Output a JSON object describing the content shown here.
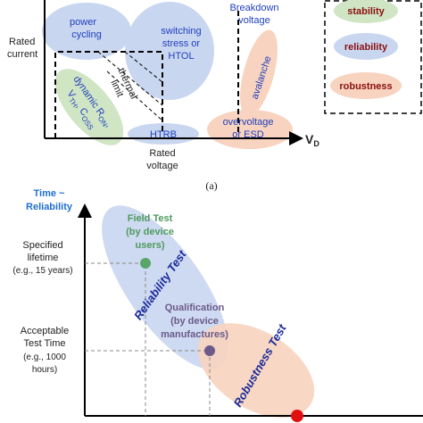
{
  "top_panel": {
    "rated_current": [
      "Rated",
      "current"
    ],
    "power_cycling": [
      "power",
      "cycling"
    ],
    "switching": [
      "switching",
      "stress or",
      "HTOL"
    ],
    "breakdown": [
      "Breakdown",
      "voltage"
    ],
    "thermal_limit": [
      "thermal",
      "limit"
    ],
    "avalanche": "avalanche",
    "dynamic": {
      "line1": [
        "dynamic R",
        "ON",
        ","
      ],
      "line2": [
        "V",
        "TH",
        ", C",
        "OSS"
      ]
    },
    "htrb": "HTRB",
    "overvoltage": [
      "overvoltage",
      "or ESD"
    ],
    "rated_voltage": [
      "Rated",
      "voltage"
    ],
    "x_axis": [
      "V",
      "D"
    ],
    "legend": [
      "stability",
      "reliability",
      "robustness"
    ],
    "caption": "(a)"
  },
  "bottom_panel": {
    "y_axis": [
      "Time ~",
      "Reliability"
    ],
    "specified_lifetime": [
      "Specified",
      "lifetime",
      "(e.g., 15 years)"
    ],
    "field_test": [
      "Field Test",
      "(by device",
      "users)"
    ],
    "reliability_test": "Reliability Test",
    "qualification": [
      "Qualification",
      "(by device",
      "manufactures)"
    ],
    "acceptable": [
      "Acceptable",
      "Test Time",
      "(e.g., 1000",
      "hours)"
    ],
    "robustness_test": "Robustness Test"
  }
}
